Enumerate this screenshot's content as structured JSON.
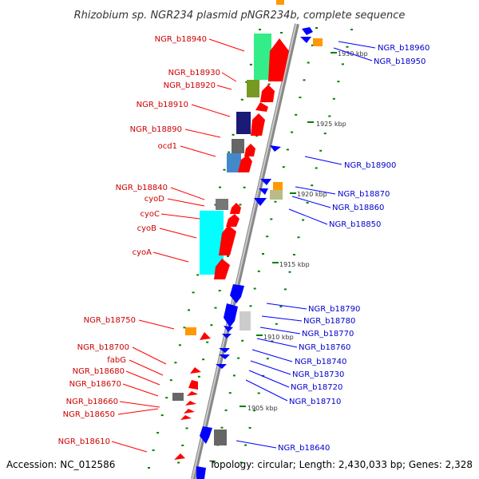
{
  "header": {
    "title": "Rhizobium sp. NGR234 plasmid pNGR234b, complete sequence"
  },
  "footer": {
    "accession": "Accession: NC_012586",
    "summary": "Topology: circular; Length: 2,430,033 bp; Genes: 2,328"
  },
  "colors": {
    "forward": "#ff0000",
    "reverse": "#0000ff",
    "backbone": "#999999",
    "tick": "#008000"
  },
  "kbp_labels": [
    "1930 kbp",
    "1925 kbp",
    "1920 kbp",
    "1915 kbp",
    "1910 kbp",
    "1905 kbp"
  ],
  "left_labels": [
    "NGR_b18940",
    "NGR_b18930",
    "NGR_b18920",
    "NGR_b18910",
    "NGR_b18890",
    "ocd1",
    "NGR_b18840",
    "cyoD",
    "cyoC",
    "cyoB",
    "cyoA",
    "NGR_b18750",
    "NGR_b18700",
    "fabG",
    "NGR_b18680",
    "NGR_b18670",
    "NGR_b18660",
    "NGR_b18650",
    "NGR_b18610"
  ],
  "right_labels": [
    "NGR_b18960",
    "NGR_b18950",
    "NGR_b18900",
    "NGR_b18870",
    "NGR_b18860",
    "NGR_b18850",
    "NGR_b18790",
    "NGR_b18780",
    "NGR_b18770",
    "NGR_b18760",
    "NGR_b18740",
    "NGR_b18730",
    "NGR_b18720",
    "NGR_b18710",
    "NGR_b18640"
  ]
}
